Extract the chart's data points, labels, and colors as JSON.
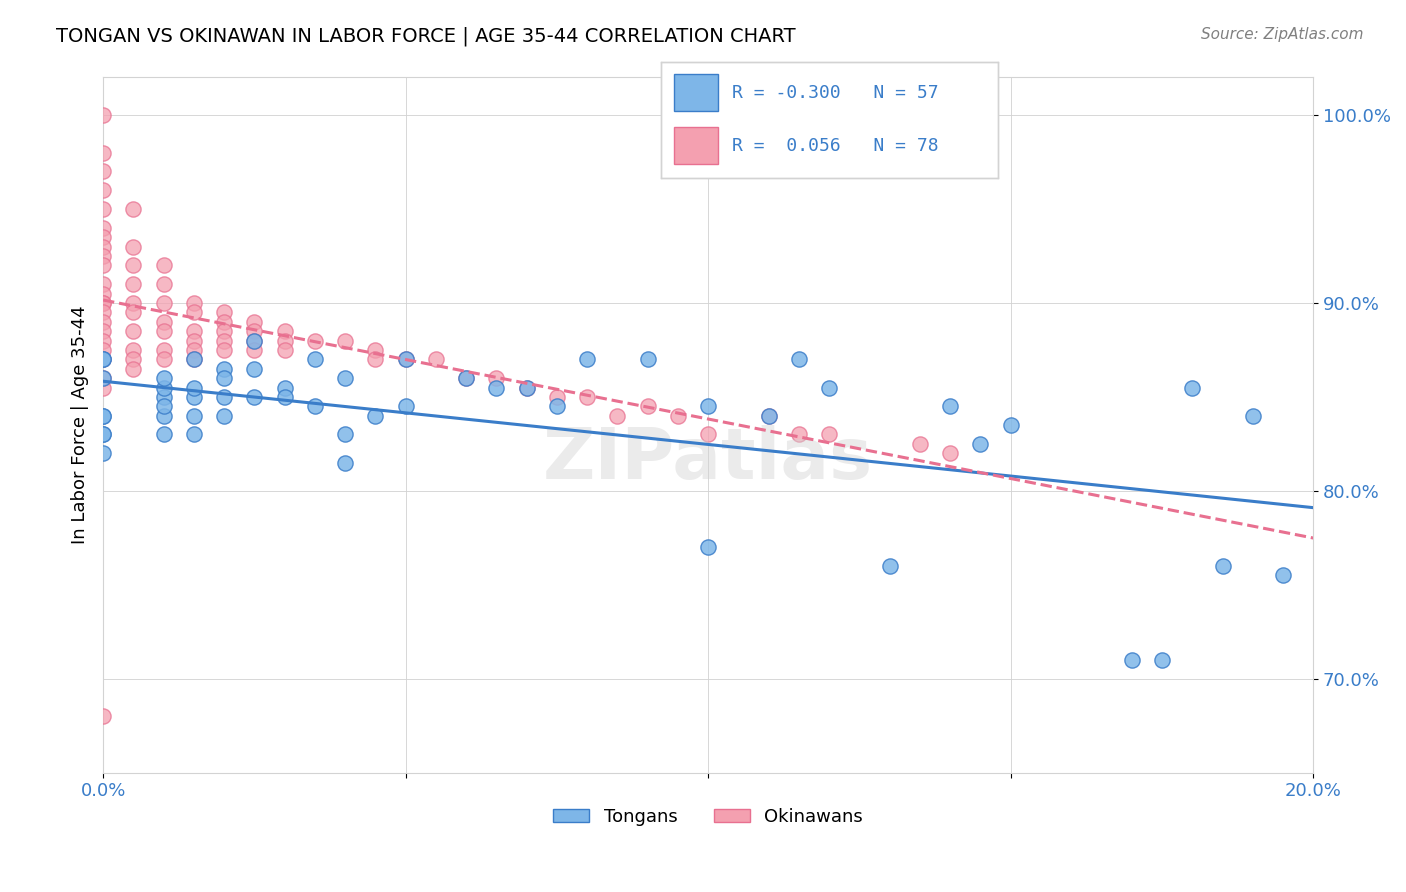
{
  "title": "TONGAN VS OKINAWAN IN LABOR FORCE | AGE 35-44 CORRELATION CHART",
  "source_text": "Source: ZipAtlas.com",
  "ylabel": "In Labor Force | Age 35-44",
  "xmin": 0.0,
  "xmax": 0.2,
  "ymin": 0.65,
  "ymax": 1.02,
  "y_ticks": [
    0.7,
    0.8,
    0.9,
    1.0
  ],
  "y_tick_labels": [
    "70.0%",
    "80.0%",
    "90.0%",
    "100.0%"
  ],
  "legend_blue_label": "Tongans",
  "legend_pink_label": "Okinawans",
  "R_blue": -0.3,
  "N_blue": 57,
  "R_pink": 0.056,
  "N_pink": 78,
  "blue_color": "#7EB6E8",
  "pink_color": "#F4A0B0",
  "blue_line_color": "#3A7DC9",
  "pink_line_color": "#E87090",
  "watermark": "ZIPatlas",
  "blue_scatter_x": [
    0.0,
    0.0,
    0.0,
    0.0,
    0.0,
    0.0,
    0.0,
    0.0,
    0.01,
    0.01,
    0.01,
    0.01,
    0.01,
    0.01,
    0.015,
    0.015,
    0.015,
    0.015,
    0.015,
    0.02,
    0.02,
    0.02,
    0.02,
    0.025,
    0.025,
    0.025,
    0.03,
    0.03,
    0.035,
    0.035,
    0.04,
    0.04,
    0.04,
    0.045,
    0.05,
    0.05,
    0.06,
    0.065,
    0.07,
    0.075,
    0.08,
    0.09,
    0.1,
    0.1,
    0.11,
    0.115,
    0.12,
    0.13,
    0.14,
    0.145,
    0.15,
    0.17,
    0.175,
    0.18,
    0.185,
    0.19,
    0.195
  ],
  "blue_scatter_y": [
    0.87,
    0.84,
    0.83,
    0.82,
    0.87,
    0.84,
    0.86,
    0.83,
    0.85,
    0.84,
    0.83,
    0.845,
    0.855,
    0.86,
    0.85,
    0.84,
    0.83,
    0.855,
    0.87,
    0.84,
    0.865,
    0.86,
    0.85,
    0.85,
    0.865,
    0.88,
    0.855,
    0.85,
    0.845,
    0.87,
    0.86,
    0.83,
    0.815,
    0.84,
    0.87,
    0.845,
    0.86,
    0.855,
    0.855,
    0.845,
    0.87,
    0.87,
    0.77,
    0.845,
    0.84,
    0.87,
    0.855,
    0.76,
    0.845,
    0.825,
    0.835,
    0.71,
    0.71,
    0.855,
    0.76,
    0.84,
    0.755
  ],
  "pink_scatter_x": [
    0.0,
    0.0,
    0.0,
    0.0,
    0.0,
    0.0,
    0.0,
    0.0,
    0.0,
    0.0,
    0.0,
    0.0,
    0.0,
    0.0,
    0.0,
    0.0,
    0.0,
    0.0,
    0.0,
    0.0,
    0.0,
    0.0,
    0.0,
    0.005,
    0.005,
    0.005,
    0.005,
    0.005,
    0.005,
    0.005,
    0.005,
    0.005,
    0.005,
    0.01,
    0.01,
    0.01,
    0.01,
    0.01,
    0.01,
    0.01,
    0.015,
    0.015,
    0.015,
    0.015,
    0.015,
    0.015,
    0.02,
    0.02,
    0.02,
    0.02,
    0.02,
    0.025,
    0.025,
    0.025,
    0.025,
    0.03,
    0.03,
    0.03,
    0.035,
    0.04,
    0.045,
    0.045,
    0.05,
    0.055,
    0.06,
    0.065,
    0.07,
    0.075,
    0.08,
    0.085,
    0.09,
    0.095,
    0.1,
    0.11,
    0.115,
    0.12,
    0.135,
    0.14
  ],
  "pink_scatter_y": [
    1.0,
    0.98,
    0.97,
    0.96,
    0.95,
    0.94,
    0.935,
    0.93,
    0.925,
    0.92,
    0.91,
    0.905,
    0.9,
    0.9,
    0.895,
    0.89,
    0.885,
    0.88,
    0.875,
    0.87,
    0.86,
    0.855,
    0.68,
    0.95,
    0.93,
    0.92,
    0.91,
    0.9,
    0.895,
    0.885,
    0.875,
    0.87,
    0.865,
    0.92,
    0.91,
    0.9,
    0.89,
    0.885,
    0.875,
    0.87,
    0.9,
    0.895,
    0.885,
    0.88,
    0.875,
    0.87,
    0.895,
    0.89,
    0.885,
    0.88,
    0.875,
    0.89,
    0.885,
    0.88,
    0.875,
    0.885,
    0.88,
    0.875,
    0.88,
    0.88,
    0.875,
    0.87,
    0.87,
    0.87,
    0.86,
    0.86,
    0.855,
    0.85,
    0.85,
    0.84,
    0.845,
    0.84,
    0.83,
    0.84,
    0.83,
    0.83,
    0.825,
    0.82
  ]
}
